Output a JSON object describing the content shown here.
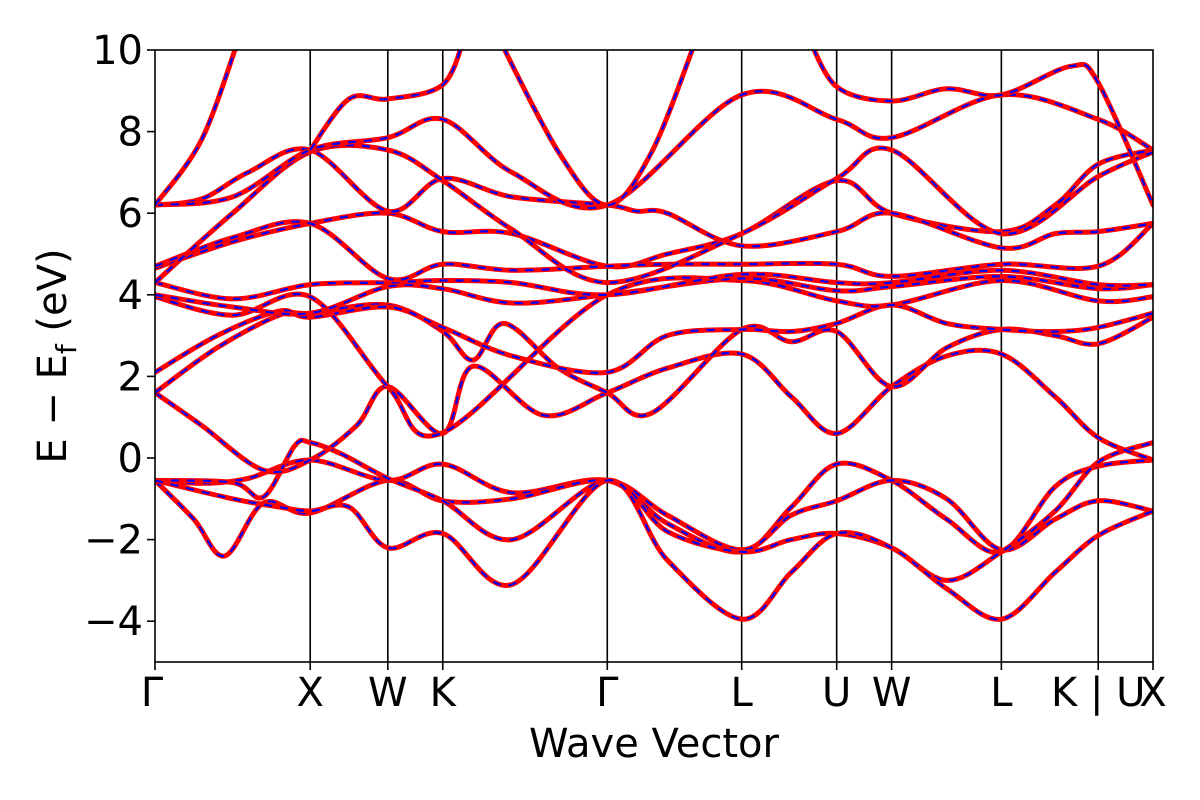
{
  "chart_data": {
    "type": "line",
    "title": "",
    "xlabel": "Wave Vector",
    "ylabel_main": "E − E",
    "ylabel_sub": "f",
    "ylabel_unit": " (eV)",
    "ylim": [
      -5,
      10
    ],
    "yticks": [
      -4,
      -2,
      0,
      2,
      4,
      6,
      8,
      10
    ],
    "ytick_labels": [
      "−4",
      "−2",
      "0",
      "2",
      "4",
      "6",
      "8",
      "10"
    ],
    "xlim": [
      0,
      6.43
    ],
    "kpoints": [
      {
        "label": "Γ",
        "x": 0.0
      },
      {
        "label": "X",
        "x": 1.0
      },
      {
        "label": "W",
        "x": 1.5
      },
      {
        "label": "K",
        "x": 1.854
      },
      {
        "label": "Γ",
        "x": 2.914
      },
      {
        "label": "L",
        "x": 3.78
      },
      {
        "label": "U",
        "x": 4.392
      },
      {
        "label": "W",
        "x": 4.746
      },
      {
        "label": "L",
        "x": 5.453
      },
      {
        "label": "K | U",
        "x": 6.077
      },
      {
        "label": "X",
        "x": 6.43
      }
    ],
    "series_styles": [
      {
        "color": "#ff0000",
        "dash": "solid"
      },
      {
        "color": "#0000ff",
        "dash": "dashed"
      }
    ],
    "bands": [
      [
        [
          0.0,
          -0.55
        ],
        [
          0.3,
          -0.62
        ],
        [
          0.6,
          -0.5
        ],
        [
          1.0,
          -0.05
        ],
        [
          1.5,
          -0.55
        ],
        [
          1.854,
          -0.15
        ],
        [
          2.3,
          -0.85
        ],
        [
          2.914,
          -0.55
        ],
        [
          3.3,
          -1.6
        ],
        [
          3.78,
          -2.3
        ],
        [
          4.1,
          -1.2
        ],
        [
          4.392,
          -0.15
        ],
        [
          4.746,
          -0.55
        ],
        [
          5.1,
          -1.5
        ],
        [
          5.453,
          -2.3
        ],
        [
          5.8,
          -0.7
        ],
        [
          6.077,
          -0.2
        ],
        [
          6.43,
          -0.05
        ]
      ],
      [
        [
          0.0,
          -0.55
        ],
        [
          0.25,
          -1.5
        ],
        [
          0.45,
          -2.4
        ],
        [
          0.7,
          -1.1
        ],
        [
          1.0,
          -1.35
        ],
        [
          1.5,
          -0.55
        ],
        [
          1.854,
          -1.05
        ],
        [
          2.3,
          -1.0
        ],
        [
          2.914,
          -0.55
        ],
        [
          3.3,
          -1.4
        ],
        [
          3.78,
          -2.25
        ],
        [
          4.1,
          -1.4
        ],
        [
          4.392,
          -1.05
        ],
        [
          4.746,
          -0.55
        ],
        [
          5.1,
          -1.0
        ],
        [
          5.453,
          -2.25
        ],
        [
          5.8,
          -1.5
        ],
        [
          6.077,
          -1.05
        ],
        [
          6.43,
          -1.3
        ]
      ],
      [
        [
          0.0,
          -0.55
        ],
        [
          0.5,
          -0.6
        ],
        [
          0.7,
          -0.95
        ],
        [
          0.9,
          0.3
        ],
        [
          1.0,
          0.38
        ],
        [
          1.2,
          0.1
        ],
        [
          1.5,
          -0.5
        ],
        [
          1.854,
          -1.05
        ],
        [
          2.3,
          -2.0
        ],
        [
          2.914,
          -0.55
        ],
        [
          3.3,
          -1.8
        ],
        [
          3.78,
          -2.3
        ],
        [
          4.1,
          -2.0
        ],
        [
          4.392,
          -1.85
        ],
        [
          4.746,
          -2.2
        ],
        [
          5.1,
          -3.0
        ],
        [
          5.453,
          -2.3
        ],
        [
          5.8,
          -1.3
        ],
        [
          6.077,
          -0.1
        ],
        [
          6.43,
          0.38
        ]
      ],
      [
        [
          0.0,
          -0.55
        ],
        [
          0.5,
          -1.0
        ],
        [
          0.8,
          -1.2
        ],
        [
          1.0,
          -1.3
        ],
        [
          1.25,
          -1.2
        ],
        [
          1.5,
          -2.2
        ],
        [
          1.854,
          -1.85
        ],
        [
          2.3,
          -3.1
        ],
        [
          2.914,
          -0.55
        ],
        [
          3.3,
          -2.5
        ],
        [
          3.78,
          -3.95
        ],
        [
          4.1,
          -2.8
        ],
        [
          4.392,
          -1.85
        ],
        [
          4.746,
          -2.2
        ],
        [
          5.1,
          -3.2
        ],
        [
          5.453,
          -3.95
        ],
        [
          5.8,
          -2.8
        ],
        [
          6.077,
          -1.9
        ],
        [
          6.43,
          -1.3
        ]
      ],
      [
        [
          0.0,
          1.6
        ],
        [
          0.3,
          0.8
        ],
        [
          0.7,
          -0.3
        ],
        [
          1.0,
          -0.05
        ],
        [
          1.3,
          0.8
        ],
        [
          1.5,
          1.75
        ],
        [
          1.854,
          0.6
        ],
        [
          2.05,
          2.25
        ],
        [
          2.5,
          1.05
        ],
        [
          2.914,
          1.6
        ],
        [
          3.3,
          2.2
        ],
        [
          3.78,
          2.55
        ],
        [
          4.1,
          1.5
        ],
        [
          4.392,
          0.6
        ],
        [
          4.746,
          1.75
        ],
        [
          5.1,
          2.5
        ],
        [
          5.453,
          2.55
        ],
        [
          5.8,
          1.5
        ],
        [
          6.077,
          0.5
        ],
        [
          6.43,
          -0.05
        ]
      ],
      [
        [
          0.0,
          1.6
        ],
        [
          0.4,
          2.7
        ],
        [
          0.8,
          3.5
        ],
        [
          1.0,
          3.55
        ],
        [
          1.5,
          3.75
        ],
        [
          1.854,
          3.1
        ],
        [
          2.05,
          2.4
        ],
        [
          2.25,
          3.3
        ],
        [
          2.6,
          2.2
        ],
        [
          2.914,
          1.6
        ],
        [
          3.2,
          1.1
        ],
        [
          3.78,
          3.15
        ],
        [
          4.1,
          2.85
        ],
        [
          4.392,
          3.1
        ],
        [
          4.746,
          1.75
        ],
        [
          5.1,
          2.7
        ],
        [
          5.453,
          3.15
        ],
        [
          5.8,
          3.0
        ],
        [
          6.077,
          2.8
        ],
        [
          6.43,
          3.45
        ]
      ],
      [
        [
          0.0,
          2.1
        ],
        [
          0.4,
          3.0
        ],
        [
          0.8,
          3.6
        ],
        [
          1.0,
          3.45
        ],
        [
          1.5,
          3.7
        ],
        [
          1.854,
          3.2
        ],
        [
          2.3,
          2.5
        ],
        [
          2.914,
          2.1
        ],
        [
          3.3,
          3.0
        ],
        [
          3.78,
          3.15
        ],
        [
          4.1,
          3.1
        ],
        [
          4.392,
          3.3
        ],
        [
          4.746,
          3.75
        ],
        [
          5.1,
          3.3
        ],
        [
          5.453,
          3.15
        ],
        [
          5.8,
          3.1
        ],
        [
          6.077,
          3.2
        ],
        [
          6.43,
          3.55
        ]
      ],
      [
        [
          0.0,
          3.95
        ],
        [
          0.5,
          3.5
        ],
        [
          1.0,
          3.95
        ],
        [
          1.5,
          1.75
        ],
        [
          1.854,
          0.62
        ],
        [
          2.914,
          4.0
        ],
        [
          3.78,
          4.35
        ],
        [
          4.392,
          3.85
        ],
        [
          4.746,
          3.75
        ],
        [
          5.453,
          4.35
        ],
        [
          6.077,
          3.85
        ],
        [
          6.43,
          3.95
        ]
      ],
      [
        [
          0.0,
          4.0
        ],
        [
          0.5,
          3.7
        ],
        [
          1.0,
          3.55
        ],
        [
          1.5,
          4.2
        ],
        [
          1.854,
          4.15
        ],
        [
          2.3,
          3.8
        ],
        [
          2.914,
          4.0
        ],
        [
          3.78,
          4.4
        ],
        [
          4.392,
          4.1
        ],
        [
          4.746,
          4.2
        ],
        [
          5.453,
          4.45
        ],
        [
          6.077,
          4.15
        ],
        [
          6.43,
          4.25
        ]
      ],
      [
        [
          0.0,
          4.3
        ],
        [
          0.5,
          3.9
        ],
        [
          1.0,
          4.25
        ],
        [
          1.5,
          4.3
        ],
        [
          1.854,
          4.35
        ],
        [
          2.3,
          4.3
        ],
        [
          2.914,
          4.0
        ],
        [
          3.78,
          4.5
        ],
        [
          4.392,
          4.3
        ],
        [
          4.746,
          4.3
        ],
        [
          5.453,
          4.6
        ],
        [
          6.077,
          4.25
        ],
        [
          6.43,
          4.25
        ]
      ],
      [
        [
          0.0,
          4.65
        ],
        [
          0.5,
          5.3
        ],
        [
          1.0,
          5.75
        ],
        [
          1.5,
          6.0
        ],
        [
          1.854,
          5.55
        ],
        [
          2.3,
          5.5
        ],
        [
          2.914,
          4.7
        ],
        [
          3.3,
          5.0
        ],
        [
          3.78,
          5.5
        ],
        [
          4.392,
          6.8
        ],
        [
          4.746,
          6.0
        ],
        [
          5.453,
          5.55
        ],
        [
          5.8,
          6.2
        ],
        [
          6.077,
          7.2
        ],
        [
          6.43,
          7.55
        ]
      ],
      [
        [
          0.0,
          4.7
        ],
        [
          0.5,
          5.4
        ],
        [
          1.0,
          5.75
        ],
        [
          1.5,
          4.4
        ],
        [
          1.854,
          4.75
        ],
        [
          2.3,
          4.6
        ],
        [
          2.914,
          4.7
        ],
        [
          3.3,
          4.75
        ],
        [
          3.78,
          4.75
        ],
        [
          4.392,
          4.75
        ],
        [
          4.746,
          4.45
        ],
        [
          5.453,
          4.75
        ],
        [
          6.077,
          4.7
        ],
        [
          6.43,
          5.75
        ]
      ],
      [
        [
          0.0,
          6.2
        ],
        [
          0.3,
          6.35
        ],
        [
          0.6,
          7.0
        ],
        [
          1.0,
          7.55
        ],
        [
          1.5,
          6.05
        ],
        [
          1.854,
          6.85
        ],
        [
          2.3,
          6.4
        ],
        [
          2.914,
          6.2
        ],
        [
          3.1,
          6.05
        ],
        [
          3.3,
          6.0
        ],
        [
          3.78,
          5.2
        ],
        [
          4.392,
          5.55
        ],
        [
          4.746,
          6.0
        ],
        [
          5.453,
          5.15
        ],
        [
          5.8,
          5.5
        ],
        [
          6.077,
          5.55
        ],
        [
          6.43,
          5.75
        ]
      ],
      [
        [
          0.0,
          4.3
        ],
        [
          0.5,
          6.0
        ],
        [
          1.0,
          7.5
        ],
        [
          1.5,
          7.55
        ],
        [
          1.854,
          6.8
        ],
        [
          2.3,
          5.6
        ],
        [
          2.914,
          4.3
        ],
        [
          3.78,
          5.5
        ],
        [
          4.392,
          6.85
        ],
        [
          4.746,
          7.55
        ],
        [
          5.453,
          5.5
        ],
        [
          6.077,
          6.9
        ],
        [
          6.43,
          7.5
        ]
      ],
      [
        [
          0.0,
          6.2
        ],
        [
          0.5,
          6.4
        ],
        [
          1.0,
          7.55
        ],
        [
          1.5,
          7.85
        ],
        [
          1.854,
          8.3
        ],
        [
          2.3,
          7.0
        ],
        [
          2.914,
          6.2
        ],
        [
          3.78,
          8.9
        ],
        [
          4.392,
          8.3
        ],
        [
          4.746,
          7.85
        ],
        [
          5.453,
          8.9
        ],
        [
          6.077,
          8.3
        ],
        [
          6.43,
          7.55
        ]
      ],
      [
        [
          0.0,
          6.2
        ],
        [
          0.3,
          7.8
        ],
        [
          0.55,
          10.4
        ]
      ],
      [
        [
          1.0,
          7.55
        ],
        [
          1.25,
          8.8
        ],
        [
          1.5,
          8.8
        ],
        [
          1.854,
          9.15
        ],
        [
          2.0,
          10.4
        ]
      ],
      [
        [
          2.2,
          10.4
        ],
        [
          2.6,
          7.5
        ],
        [
          2.914,
          6.2
        ],
        [
          3.2,
          7.5
        ],
        [
          3.5,
          10.4
        ]
      ],
      [
        [
          4.2,
          10.4
        ],
        [
          4.392,
          9.1
        ],
        [
          4.746,
          8.75
        ],
        [
          5.1,
          9.05
        ],
        [
          5.453,
          8.9
        ],
        [
          5.9,
          9.6
        ],
        [
          6.077,
          9.2
        ],
        [
          6.43,
          6.2
        ]
      ]
    ]
  }
}
